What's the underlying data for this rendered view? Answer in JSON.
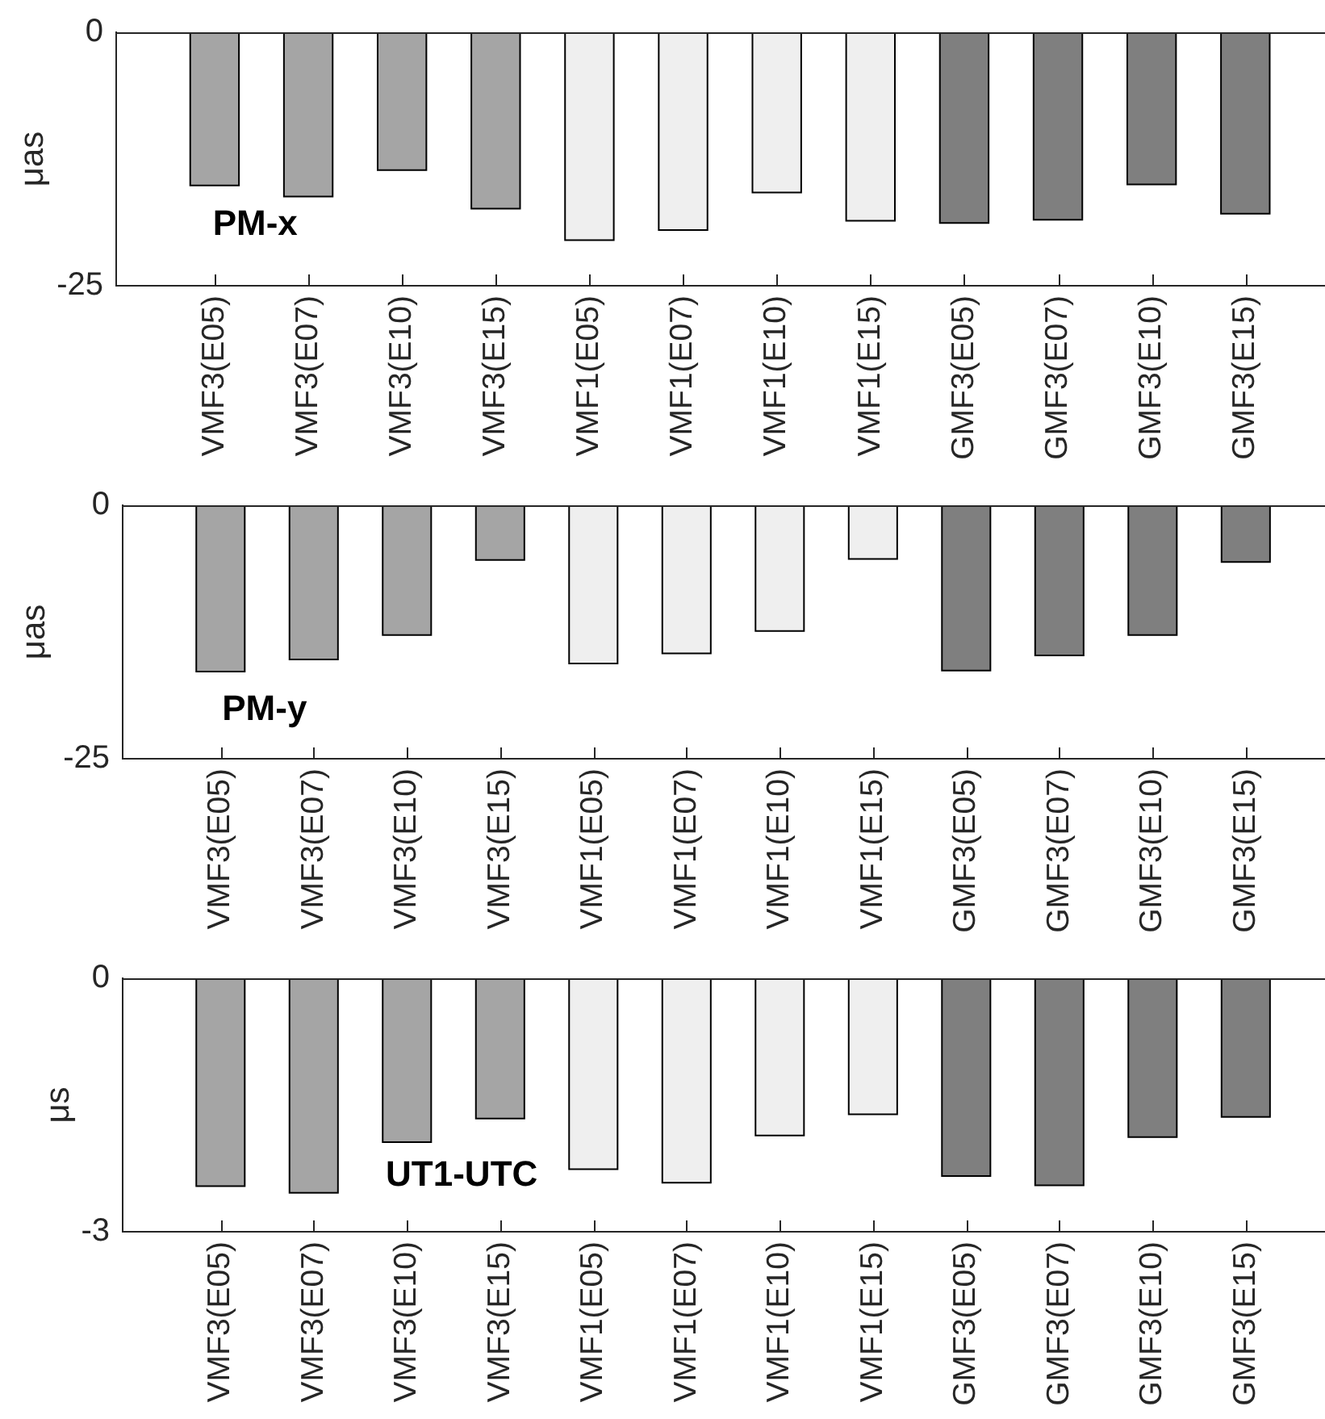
{
  "chart_data": [
    {
      "type": "bar",
      "categories": [
        "VMF3(E05)",
        "VMF3(E07)",
        "VMF3(E10)",
        "VMF3(E15)",
        "VMF1(E05)",
        "VMF1(E07)",
        "VMF1(E10)",
        "VMF1(E15)",
        "GMF3(E05)",
        "GMF3(E07)",
        "GMF3(E10)",
        "GMF3(E15)"
      ],
      "values": [
        -15.1,
        -16.2,
        -13.6,
        -17.4,
        -20.5,
        -19.5,
        -15.8,
        -18.6,
        -18.8,
        -18.5,
        -15.0,
        -17.9
      ],
      "colors": [
        "#a5a5a5",
        "#a5a5a5",
        "#a5a5a5",
        "#a5a5a5",
        "#efefef",
        "#efefef",
        "#efefef",
        "#efefef",
        "#7f7f7f",
        "#7f7f7f",
        "#7f7f7f",
        "#7f7f7f"
      ],
      "ylabel": "μas",
      "ylim": [
        -25,
        0
      ],
      "yticks": [
        -25,
        0
      ],
      "annotations": [
        "PM-x"
      ],
      "grid": false
    },
    {
      "type": "bar",
      "categories": [
        "VMF3(E05)",
        "VMF3(E07)",
        "VMF3(E10)",
        "VMF3(E15)",
        "VMF1(E05)",
        "VMF1(E07)",
        "VMF1(E10)",
        "VMF1(E15)",
        "GMF3(E05)",
        "GMF3(E07)",
        "GMF3(E10)",
        "GMF3(E15)"
      ],
      "values": [
        -16.4,
        -15.2,
        -12.8,
        -5.4,
        -15.6,
        -14.6,
        -12.4,
        -5.3,
        -16.3,
        -14.8,
        -12.8,
        -5.6
      ],
      "colors": [
        "#a5a5a5",
        "#a5a5a5",
        "#a5a5a5",
        "#a5a5a5",
        "#efefef",
        "#efefef",
        "#efefef",
        "#efefef",
        "#7f7f7f",
        "#7f7f7f",
        "#7f7f7f",
        "#7f7f7f"
      ],
      "ylabel": "μas",
      "ylim": [
        -25,
        0
      ],
      "yticks": [
        -25,
        0
      ],
      "annotations": [
        "PM-y"
      ],
      "grid": false
    },
    {
      "type": "bar",
      "categories": [
        "VMF3(E05)",
        "VMF3(E07)",
        "VMF3(E10)",
        "VMF3(E15)",
        "VMF1(E05)",
        "VMF1(E07)",
        "VMF1(E10)",
        "VMF1(E15)",
        "GMF3(E05)",
        "GMF3(E07)",
        "GMF3(E10)",
        "GMF3(E15)"
      ],
      "values": [
        -2.46,
        -2.54,
        -1.94,
        -1.66,
        -2.26,
        -2.42,
        -1.86,
        -1.61,
        -2.34,
        -2.45,
        -1.88,
        -1.64
      ],
      "colors": [
        "#a5a5a5",
        "#a5a5a5",
        "#a5a5a5",
        "#a5a5a5",
        "#efefef",
        "#efefef",
        "#efefef",
        "#efefef",
        "#7f7f7f",
        "#7f7f7f",
        "#7f7f7f",
        "#7f7f7f"
      ],
      "ylabel": "μs",
      "ylim": [
        -3,
        0
      ],
      "yticks": [
        -3,
        0
      ],
      "annotations": [
        "UT1-UTC"
      ],
      "grid": false
    }
  ]
}
